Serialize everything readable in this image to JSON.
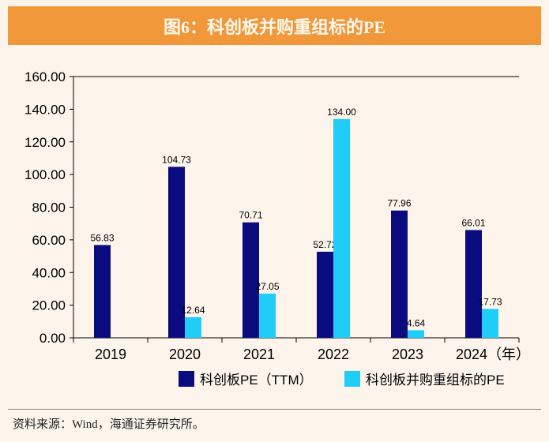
{
  "header": {
    "title": "图6：科创板并购重组标的PE"
  },
  "footer": {
    "source": "资料来源：Wind，海通证券研究所。"
  },
  "colors": {
    "series1": "#0b0b80",
    "series2": "#1fcdf7",
    "title_band": "#f0983a"
  },
  "chart_data": {
    "type": "bar",
    "title": "图6：科创板并购重组标的PE",
    "categories": [
      "2019",
      "2020",
      "2021",
      "2022",
      "2023",
      "2024（年）"
    ],
    "series": [
      {
        "name": "科创板PE（TTM）",
        "values": [
          56.83,
          104.73,
          70.71,
          52.72,
          77.96,
          66.01
        ],
        "labels": [
          "56.83",
          "104.73",
          "70.71",
          "52.72",
          "77.96",
          "66.01"
        ]
      },
      {
        "name": "科创板并购重组标的PE",
        "values": [
          null,
          12.64,
          27.05,
          134.0,
          4.64,
          17.73
        ],
        "labels": [
          "",
          "12.64",
          "27.05",
          "134.00",
          "4.64",
          "17.73"
        ]
      }
    ],
    "yticks": [
      "0.00",
      "20.00",
      "40.00",
      "60.00",
      "80.00",
      "100.00",
      "120.00",
      "140.00",
      "160.00"
    ],
    "ylim": [
      0,
      160
    ],
    "xlabel": "",
    "ylabel": "",
    "grid": false,
    "legend": "bottom-right"
  }
}
